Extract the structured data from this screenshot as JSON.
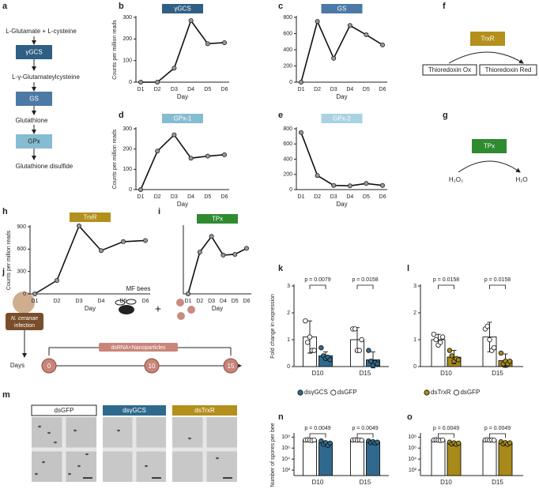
{
  "panel_letters": [
    "a",
    "b",
    "c",
    "d",
    "e",
    "f",
    "g",
    "h",
    "i",
    "j",
    "k",
    "l",
    "m",
    "n",
    "o"
  ],
  "panel_a": {
    "steps": [
      "L-Glutamate + L-cysteine",
      "L-γ-Glutamateylcysteine",
      "Glutathione",
      "Glutathione disulfide"
    ],
    "enzymes": [
      "γGCS",
      "GS",
      "GPx"
    ]
  },
  "panel_f": {
    "enzyme": "TrxR",
    "from": "Thioredoxin Ox",
    "to": "Thioredoxin Red"
  },
  "panel_g": {
    "enzyme": "TPx",
    "from": "H₂O₂",
    "to": "H₂O"
  },
  "panel_j": {
    "infection": [
      "N. ceranae",
      "infection"
    ],
    "bees": "MF bees",
    "plus": "+",
    "treatment": "dsRNA+Nanoparticles",
    "axis_label": "Days",
    "days": [
      "0",
      "10",
      "15"
    ]
  },
  "panel_m": {
    "labels": [
      "dsGFP",
      "dsγGCS",
      "dsTrxR"
    ]
  },
  "chart_data": [
    {
      "type": "line",
      "title": "γGCS",
      "title_color": "#2f5f84",
      "categories": [
        "D1",
        "D2",
        "D3",
        "D4",
        "D5",
        "D6"
      ],
      "values": [
        0,
        0,
        65,
        285,
        178,
        183
      ],
      "ylim": [
        0,
        300
      ],
      "yticks": [
        0,
        100,
        200,
        300
      ],
      "xlabel": "Day",
      "ylabel": "Counts per million reads"
    },
    {
      "type": "line",
      "title": "GS",
      "title_color": "#4c79a6",
      "categories": [
        "D1",
        "D2",
        "D3",
        "D4",
        "D5",
        "D6"
      ],
      "values": [
        0,
        750,
        295,
        700,
        585,
        460
      ],
      "ylim": [
        0,
        800
      ],
      "yticks": [
        0,
        200,
        400,
        600,
        800
      ],
      "xlabel": "Day"
    },
    {
      "type": "line",
      "title": "GPx-1",
      "title_color": "#86bcd2",
      "categories": [
        "D1",
        "D2",
        "D3",
        "D4",
        "D5",
        "D6"
      ],
      "values": [
        0,
        190,
        270,
        155,
        165,
        172
      ],
      "ylim": [
        0,
        300
      ],
      "yticks": [
        0,
        100,
        200,
        300
      ],
      "xlabel": "Day",
      "ylabel": "Counts per million reads"
    },
    {
      "type": "line",
      "title": "GPx-2",
      "title_color": "#a9d2e2",
      "categories": [
        "D1",
        "D2",
        "D3",
        "D4",
        "D5",
        "D6"
      ],
      "values": [
        750,
        185,
        55,
        50,
        80,
        55
      ],
      "ylim": [
        0,
        800
      ],
      "yticks": [
        0,
        200,
        400,
        600,
        800
      ],
      "xlabel": "Day"
    },
    {
      "type": "line",
      "title": "TrxR",
      "title_color": "#b38f1c",
      "categories": [
        "D1",
        "D2",
        "D3",
        "D4",
        "D5",
        "D6"
      ],
      "values": [
        0,
        180,
        910,
        580,
        700,
        715
      ],
      "ylim": [
        0,
        900
      ],
      "yticks": [
        0,
        300,
        600,
        900
      ],
      "xlabel": "Day",
      "ylabel": "Counts per million reads"
    },
    {
      "type": "line",
      "title": "TPx",
      "title_color": "#2f8a30",
      "categories": [
        "D1",
        "D2",
        "D3",
        "D4",
        "D5",
        "D6"
      ],
      "values": [
        0,
        560,
        770,
        520,
        530,
        610
      ],
      "ylim": [
        0,
        900
      ],
      "xlabel": "Day"
    },
    {
      "type": "bar",
      "categories": [
        "D10",
        "D15"
      ],
      "ylim": [
        0,
        3
      ],
      "yticks": [
        0,
        1,
        2,
        3
      ],
      "ylabel": "Fold change in expression",
      "annotations": [
        "p = 0.0079",
        "p = 0.0158"
      ],
      "series": [
        {
          "name": "dsGFP",
          "color": "#ffffff",
          "values": [
            1.1,
            1.0
          ],
          "errors": [
            0.6,
            0.45
          ],
          "points": [
            [
              1.7,
              0.9,
              1.1,
              0.6,
              0.6
            ],
            [
              1.4,
              1.4,
              0.6,
              0.6,
              1.0
            ]
          ]
        },
        {
          "name": "dsγGCS",
          "color": "#2f6a8e",
          "values": [
            0.4,
            0.25
          ],
          "errors": [
            0.15,
            0.3
          ],
          "points": [
            [
              0.7,
              0.4,
              0.3,
              0.35,
              0.25
            ],
            [
              0.6,
              0.2,
              0.05,
              0.15,
              0.1
            ]
          ]
        }
      ]
    },
    {
      "type": "bar",
      "categories": [
        "D10",
        "D15"
      ],
      "ylim": [
        0,
        3
      ],
      "yticks": [
        0,
        1,
        2,
        3
      ],
      "annotations": [
        "p = 0.0158",
        "p = 0.0158"
      ],
      "series": [
        {
          "name": "dsGFP",
          "color": "#ffffff",
          "values": [
            1.0,
            1.1
          ],
          "errors": [
            0.2,
            0.55
          ],
          "points": [
            [
              1.2,
              1.0,
              0.8,
              0.9,
              1.1
            ],
            [
              1.4,
              1.5,
              1.0,
              0.6,
              0.7
            ]
          ]
        },
        {
          "name": "dsTrxR",
          "color": "#a88a1a",
          "values": [
            0.35,
            0.22
          ],
          "errors": [
            0.25,
            0.25
          ],
          "points": [
            [
              0.6,
              0.4,
              0.2,
              0.3,
              0.25
            ],
            [
              0.5,
              0.1,
              0.2,
              0.1,
              0.2
            ]
          ]
        }
      ]
    },
    {
      "type": "bar",
      "log_scale": true,
      "categories": [
        "D10",
        "D15"
      ],
      "ylim": [
        10,
        300000000
      ],
      "yticks": [
        {
          "value": 100,
          "label": "10²"
        },
        {
          "value": 10000,
          "label": "10⁴"
        },
        {
          "value": 1000000,
          "label": "10⁶"
        },
        {
          "value": 100000000,
          "label": "10⁸"
        }
      ],
      "ylabel": "Number of spores per bee",
      "annotations": [
        "p = 0.0049",
        "p = 0.0049"
      ],
      "series": [
        {
          "color": "#ffffff",
          "values": [
            30000000,
            30000000
          ],
          "points": [
            [
              30000000,
              32000000,
              28000000,
              25000000,
              30000000
            ],
            [
              30000000,
              33000000,
              28000000,
              30000000,
              27000000
            ]
          ]
        },
        {
          "color": "#2f6a8e",
          "values": [
            10000000,
            15000000
          ],
          "points": [
            [
              20000000,
              5000000,
              10000000,
              3000000,
              8000000
            ],
            [
              20000000,
              10000000,
              15000000,
              8000000,
              12000000
            ]
          ]
        }
      ]
    },
    {
      "type": "bar",
      "log_scale": true,
      "categories": [
        "D10",
        "D15"
      ],
      "ylim": [
        10,
        300000000
      ],
      "yticks": [
        {
          "value": 100,
          "label": "10²"
        },
        {
          "value": 10000,
          "label": "10⁴"
        },
        {
          "value": 1000000,
          "label": "10⁶"
        },
        {
          "value": 100000000,
          "label": "10⁸"
        }
      ],
      "annotations": [
        "p = 0.0049",
        "p = 0.0049"
      ],
      "series": [
        {
          "color": "#ffffff",
          "values": [
            30000000,
            30000000
          ],
          "points": [
            [
              30000000,
              32000000,
              28000000,
              25000000,
              30000000
            ],
            [
              30000000,
              33000000,
              28000000,
              30000000,
              27000000
            ]
          ]
        },
        {
          "color": "#a88a1a",
          "values": [
            8000000,
            9000000
          ],
          "points": [
            [
              12000000,
              6000000,
              9000000,
              5000000,
              8000000
            ],
            [
              14000000,
              6000000,
              10000000,
              5000000,
              9000000
            ]
          ]
        }
      ]
    }
  ]
}
